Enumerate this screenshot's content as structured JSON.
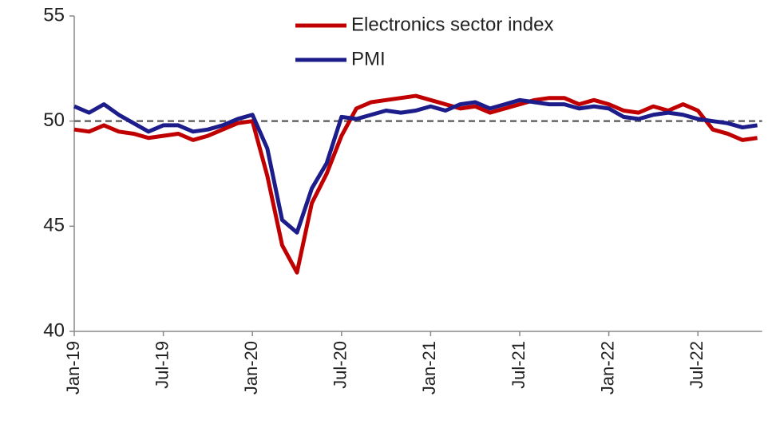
{
  "chart_data": {
    "type": "line",
    "categories": [
      "Jan-19",
      null,
      null,
      null,
      null,
      null,
      "Jul-19",
      null,
      null,
      null,
      null,
      null,
      "Jan-20",
      null,
      null,
      null,
      null,
      null,
      "Jul-20",
      null,
      null,
      null,
      null,
      null,
      "Jan-21",
      null,
      null,
      null,
      null,
      null,
      "Jul-21",
      null,
      null,
      null,
      null,
      null,
      "Jan-22",
      null,
      null,
      null,
      null,
      null,
      "Jul-22",
      null,
      null,
      null,
      null
    ],
    "series": [
      {
        "name": "Electronics sector index",
        "color": "#c00000",
        "values": [
          49.6,
          49.5,
          49.8,
          49.5,
          49.4,
          49.2,
          49.3,
          49.4,
          49.1,
          49.3,
          49.6,
          49.9,
          50.0,
          47.4,
          44.1,
          42.8,
          46.1,
          47.5,
          49.3,
          50.6,
          50.9,
          51.0,
          51.1,
          51.2,
          51.0,
          50.8,
          50.6,
          50.7,
          50.4,
          50.6,
          50.8,
          51.0,
          51.1,
          51.1,
          50.8,
          51.0,
          50.8,
          50.5,
          50.4,
          50.7,
          50.5,
          50.8,
          50.5,
          49.6,
          49.4,
          49.1,
          49.2
        ]
      },
      {
        "name": "PMI",
        "color": "#1c1c8a",
        "values": [
          50.7,
          50.4,
          50.8,
          50.3,
          49.9,
          49.5,
          49.8,
          49.8,
          49.5,
          49.6,
          49.8,
          50.1,
          50.3,
          48.7,
          45.3,
          44.7,
          46.8,
          48.0,
          50.2,
          50.1,
          50.3,
          50.5,
          50.4,
          50.5,
          50.7,
          50.5,
          50.8,
          50.9,
          50.6,
          50.8,
          51.0,
          50.9,
          50.8,
          50.8,
          50.6,
          50.7,
          50.6,
          50.2,
          50.1,
          50.3,
          50.4,
          50.3,
          50.1,
          50.0,
          49.9,
          49.7,
          49.8
        ]
      }
    ],
    "ylim": [
      40,
      55
    ],
    "yticks": [
      40,
      45,
      50,
      55
    ],
    "reference_line": 50,
    "legend": "top"
  }
}
